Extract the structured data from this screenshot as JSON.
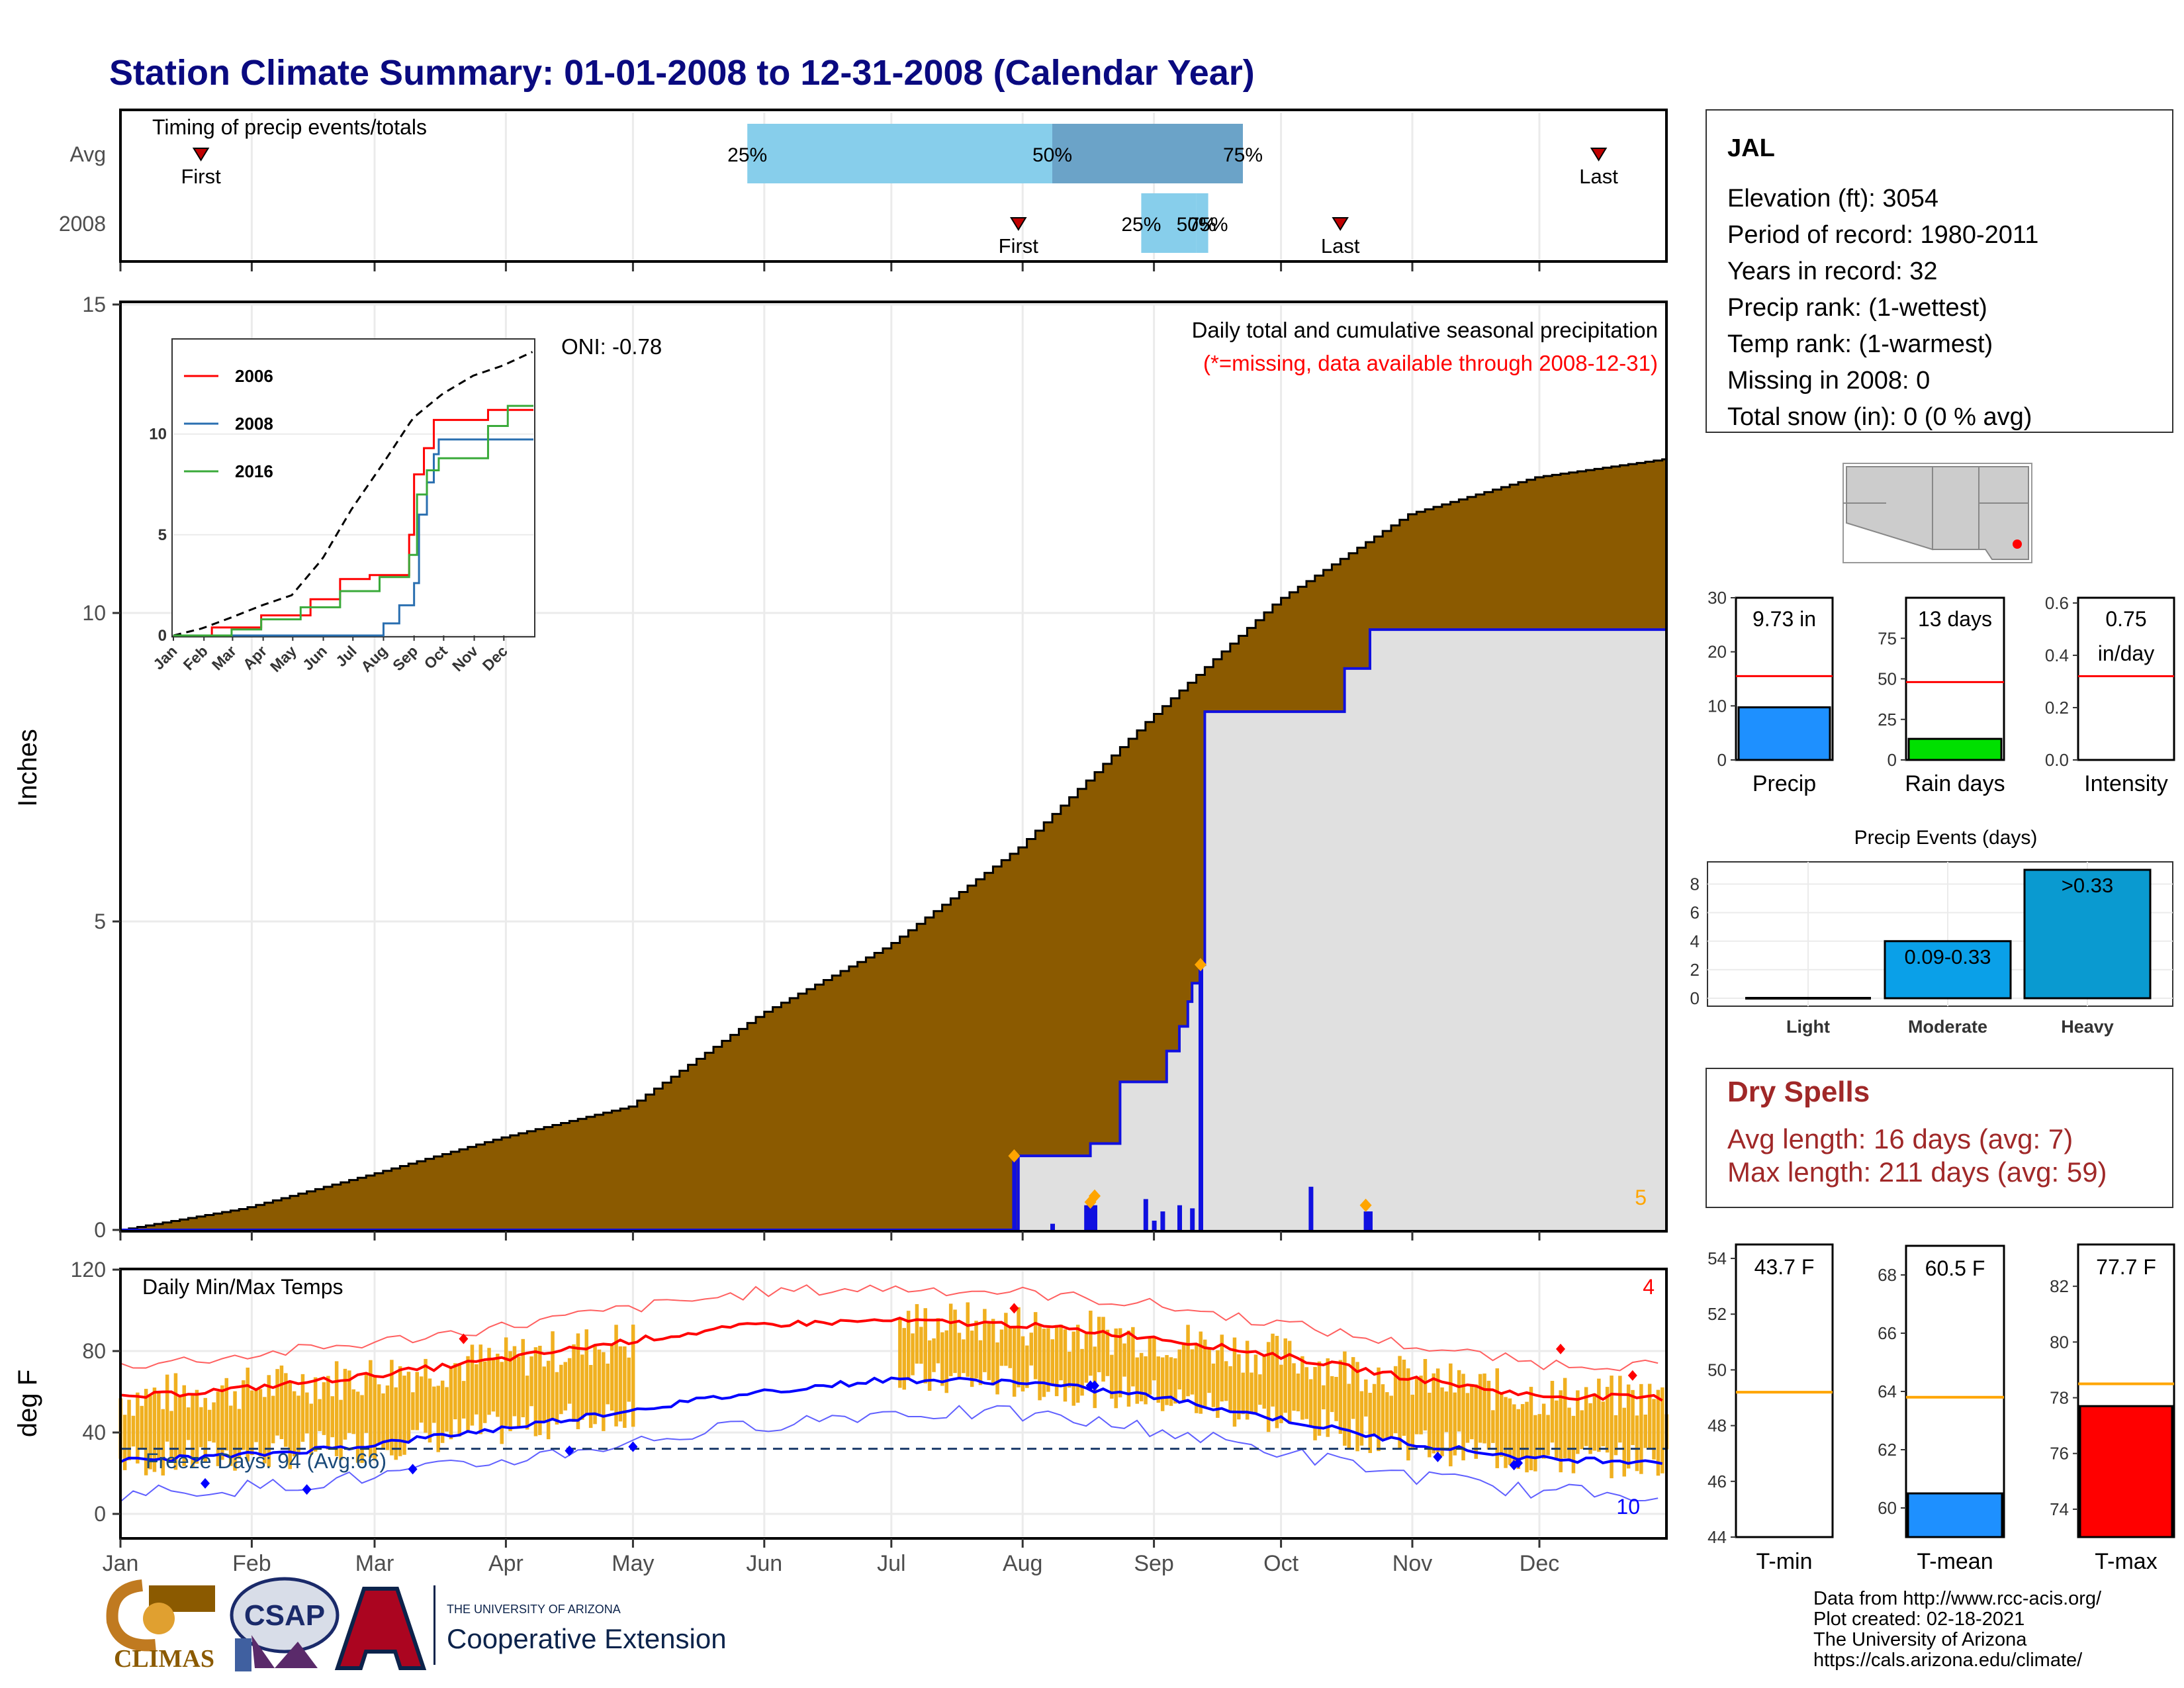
{
  "title": "Station Climate Summary: 01-01-2008 to 12-31-2008 (Calendar Year)",
  "colors": {
    "precip_fill": "#8B5A00",
    "obs_line": "#1010e0",
    "obs_fill": "#e0e0e0",
    "marker": "#ffa500",
    "tmax": "#ff0000",
    "tmin": "#0000ff",
    "bar_temp": "#f0b020",
    "light_blue": "#87ceeb",
    "mid_blue": "#6ba3c8"
  },
  "timing": {
    "title": "Timing of precip events/totals",
    "rows": [
      {
        "label": "Avg",
        "first_label": "First",
        "last_label": "Last",
        "first_date": "2008-01-20",
        "last_date": "2008-12-15",
        "p25": "2008-05-28",
        "p50": "2008-08-08",
        "p75": "2008-09-22",
        "p25_label": "25%",
        "p50_label": "50%",
        "p75_label": "75%"
      },
      {
        "label": "2008",
        "first_label": "First",
        "last_label": "Last",
        "first_date": "2008-07-31",
        "last_date": "2008-10-15",
        "p25": "2008-08-29",
        "p50": "2008-09-11",
        "p75": "2008-09-11",
        "p25_label": "25%",
        "p50_label": "50%",
        "p75_label": "75%"
      }
    ]
  },
  "main": {
    "ylabel": "Inches",
    "header": "Daily total and cumulative seasonal precipitation",
    "subheader": "(*=missing, data available through 2008-12-31)",
    "oni": "ONI: -0.78",
    "count_label": "5",
    "yticks": [
      "0",
      "5",
      "10",
      "15"
    ]
  },
  "months": [
    "Jan",
    "Feb",
    "Mar",
    "Apr",
    "May",
    "Jun",
    "Jul",
    "Aug",
    "Sep",
    "Oct",
    "Nov",
    "Dec"
  ],
  "temps": {
    "title": "Daily Min/Max Temps",
    "ylabel": "deg F",
    "freeze_label": "Freeze Days: 94 (Avg:66)",
    "count_red": "4",
    "count_blue": "10",
    "yticks": [
      "0",
      "40",
      "80",
      "120"
    ]
  },
  "station": {
    "name": "JAL",
    "lines": [
      "Elevation (ft): 3054",
      "Period of record: 1980-2011",
      "Years in record: 32",
      "Precip rank:  (1-wettest)",
      "Temp rank:  (1-warmest)",
      "Missing in 2008: 0",
      "Total snow (in): 0 (0 % avg)"
    ]
  },
  "mini_bars": {
    "precip": {
      "label": "Precip",
      "value_label": "9.73 in",
      "yticks": [
        "0",
        "10",
        "20",
        "30"
      ]
    },
    "rain_days": {
      "label": "Rain days",
      "value_label": "13 days",
      "yticks": [
        "0",
        "25",
        "50",
        "75"
      ]
    },
    "intensity": {
      "label": "Intensity",
      "value_label": "0.75",
      "value_label2": "in/day",
      "yticks": [
        "0.0",
        "0.2",
        "0.4",
        "0.6"
      ]
    }
  },
  "events": {
    "title": "Precip Events (days)",
    "yticks": [
      "0",
      "2",
      "4",
      "6",
      "8"
    ]
  },
  "dry_spells": {
    "title": "Dry Spells",
    "avg": "Avg length: 16 days (avg: 7)",
    "max": "Max length: 211 days (avg: 59)"
  },
  "temp_bars": {
    "tmin": {
      "label": "T-min",
      "value_label": "43.7 F",
      "yticks": [
        "44",
        "46",
        "48",
        "50",
        "52",
        "54"
      ]
    },
    "tmean": {
      "label": "T-mean",
      "value_label": "60.5 F",
      "yticks": [
        "60",
        "62",
        "64",
        "66",
        "68"
      ]
    },
    "tmax": {
      "label": "T-max",
      "value_label": "77.7 F",
      "yticks": [
        "74",
        "76",
        "78",
        "80",
        "82"
      ]
    }
  },
  "footer": {
    "lines": [
      "Data from http://www.rcc-acis.org/",
      "Plot created: 02-18-2021",
      "The University of Arizona",
      "https://cals.arizona.edu/climate/"
    ],
    "climas": "CLIMAS",
    "csap": "CSAP",
    "ua_small": "THE UNIVERSITY OF ARIZONA",
    "ua_big": "Cooperative Extension"
  },
  "chart_data": [
    {
      "type": "area",
      "title": "Daily total and cumulative seasonal precipitation",
      "ylabel": "Inches",
      "ylim": [
        0,
        15
      ],
      "x_range": [
        "2008-01-01",
        "2008-12-31"
      ],
      "series": [
        {
          "name": "Average cumulative",
          "x_day": [
            1,
            30,
            60,
            91,
            121,
            152,
            182,
            213,
            244,
            274,
            305,
            335,
            366
          ],
          "values": [
            0,
            0.35,
            0.9,
            1.5,
            2.0,
            3.5,
            4.6,
            6.2,
            8.3,
            10.2,
            11.6,
            12.2,
            12.5
          ]
        },
        {
          "name": "2008 cumulative",
          "x_day": [
            1,
            212,
            213,
            223,
            230,
            237,
            243,
            248,
            251,
            253,
            254,
            256,
            257,
            290,
            290,
            296,
            296,
            366
          ],
          "values": [
            0,
            0,
            1.2,
            1.2,
            1.4,
            2.4,
            2.4,
            2.9,
            3.3,
            3.7,
            4.0,
            4.3,
            8.4,
            8.4,
            9.1,
            9.1,
            9.73,
            9.73
          ]
        }
      ],
      "daily_precip_2008": [
        {
          "day": 212,
          "in": 1.2
        },
        {
          "day": 221,
          "in": 0.1
        },
        {
          "day": 229,
          "in": 0.4
        },
        {
          "day": 230,
          "in": 0.4
        },
        {
          "day": 231,
          "in": 0.4
        },
        {
          "day": 243,
          "in": 0.5
        },
        {
          "day": 245,
          "in": 0.15
        },
        {
          "day": 247,
          "in": 0.3
        },
        {
          "day": 251,
          "in": 0.4
        },
        {
          "day": 254,
          "in": 0.35
        },
        {
          "day": 256,
          "in": 4.3
        },
        {
          "day": 282,
          "in": 0.7
        },
        {
          "day": 295,
          "in": 0.3
        },
        {
          "day": 296,
          "in": 0.3
        }
      ]
    },
    {
      "type": "line",
      "title": "Daily Min/Max Temps",
      "ylabel": "deg F",
      "ylim": [
        -10,
        120
      ],
      "x_range": [
        "2008-01-01",
        "2008-12-31"
      ],
      "series": [
        {
          "name": "Avg max",
          "x_day": [
            1,
            32,
            60,
            91,
            121,
            152,
            182,
            213,
            244,
            274,
            305,
            335,
            366
          ],
          "values": [
            57,
            62,
            68,
            76,
            85,
            93,
            95,
            93,
            87,
            78,
            67,
            58,
            57
          ]
        },
        {
          "name": "Avg min",
          "x_day": [
            1,
            32,
            60,
            91,
            121,
            152,
            182,
            213,
            244,
            274,
            305,
            335,
            366
          ],
          "values": [
            26,
            29,
            34,
            42,
            51,
            60,
            66,
            65,
            58,
            47,
            35,
            27,
            26
          ]
        }
      ],
      "freeze_threshold": 32
    }
  ]
}
